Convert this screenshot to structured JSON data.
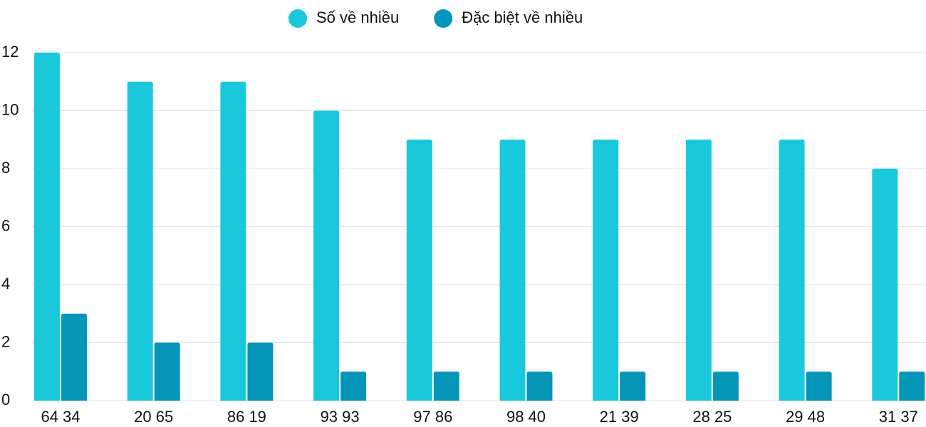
{
  "chart_data": {
    "type": "bar",
    "categories": [
      "64 34",
      "20 65",
      "86 19",
      "93 93",
      "97 86",
      "98 40",
      "21 39",
      "28 25",
      "29 48",
      "31 37"
    ],
    "series": [
      {
        "name": "Số về nhiều",
        "color": "#1ac8dc",
        "values": [
          12,
          11,
          11,
          10,
          9,
          9,
          9,
          9,
          9,
          8
        ]
      },
      {
        "name": "Đặc biệt về nhiều",
        "color": "#0595b8",
        "values": [
          3,
          2,
          2,
          1,
          1,
          1,
          1,
          1,
          1,
          1
        ]
      }
    ],
    "ylim": [
      0,
      12
    ],
    "yticks": [
      0,
      2,
      4,
      6,
      8,
      10,
      12
    ],
    "grid": true,
    "legend": "top"
  }
}
